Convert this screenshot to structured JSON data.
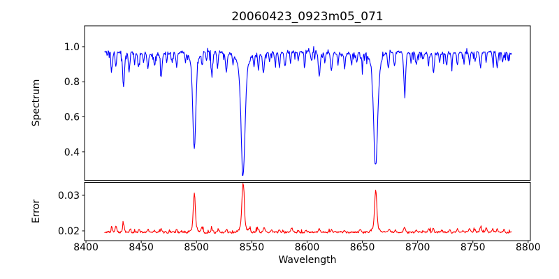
{
  "title": "20060423_0923m05_071",
  "axes": {
    "xlabel": "Wavelength",
    "spectrum_ylabel": "Spectrum",
    "error_ylabel": "Error",
    "xticks": [
      {
        "value": 8400,
        "label": "8400"
      },
      {
        "value": 8450,
        "label": "8450"
      },
      {
        "value": 8500,
        "label": "8500"
      },
      {
        "value": 8550,
        "label": "8550"
      },
      {
        "value": 8600,
        "label": "8600"
      },
      {
        "value": 8650,
        "label": "8650"
      },
      {
        "value": 8700,
        "label": "8700"
      },
      {
        "value": 8750,
        "label": "8750"
      },
      {
        "value": 8800,
        "label": "8800"
      }
    ]
  },
  "colors": {
    "spectrum_line": "#0000ff",
    "error_line": "#ff0000",
    "axis": "#000000",
    "background": "#ffffff"
  },
  "chart_data": [
    {
      "panel": "spectrum",
      "type": "line",
      "series_name": "Spectrum",
      "color": "#0000ff",
      "xlim": [
        8398.7,
        8802.0
      ],
      "ylim": [
        0.238,
        1.119
      ],
      "yticks": [
        {
          "value": 0.4,
          "label": "0.4"
        },
        {
          "value": 0.6,
          "label": "0.6"
        },
        {
          "value": 0.8,
          "label": "0.8"
        },
        {
          "value": 1.0,
          "label": "1.0"
        }
      ],
      "x_data_range": [
        8417,
        8785
      ],
      "sample_step": 0.5,
      "seed": 42,
      "continuum": 0.965,
      "ripple": {
        "amp": 0.006,
        "period": 85
      },
      "noise_amp": 0.011,
      "down_spike": {
        "prob": 0.1,
        "max": 0.05
      },
      "up_spike": {
        "prob": 0.05,
        "max": 0.03
      },
      "absorption_lines_format": "[center_wavelength, depth, sigma]",
      "absorption_lines": [
        [
          8498.0,
          0.46,
          1.3
        ],
        [
          8498.0,
          0.09,
          3.2
        ],
        [
          8542.1,
          0.58,
          1.7
        ],
        [
          8542.1,
          0.11,
          4.2
        ],
        [
          8662.1,
          0.53,
          1.7
        ],
        [
          8662.1,
          0.11,
          4.2
        ],
        [
          8423.5,
          0.1,
          0.7
        ],
        [
          8427.0,
          0.09,
          0.6
        ],
        [
          8434.0,
          0.195,
          0.85
        ],
        [
          8439.0,
          0.11,
          0.7
        ],
        [
          8444.0,
          0.06,
          0.5
        ],
        [
          8447.5,
          0.08,
          0.6
        ],
        [
          8452.0,
          0.06,
          0.5
        ],
        [
          8456.0,
          0.09,
          0.7
        ],
        [
          8462.0,
          0.07,
          0.6
        ],
        [
          8468.0,
          0.13,
          0.8
        ],
        [
          8473.0,
          0.05,
          0.5
        ],
        [
          8478.0,
          0.06,
          0.5
        ],
        [
          8482.0,
          0.08,
          0.6
        ],
        [
          8490.0,
          0.06,
          0.5
        ],
        [
          8505.0,
          0.07,
          0.6
        ],
        [
          8509.0,
          0.05,
          0.5
        ],
        [
          8514.0,
          0.13,
          0.8
        ],
        [
          8519.0,
          0.09,
          0.6
        ],
        [
          8527.0,
          0.11,
          0.8
        ],
        [
          8533.0,
          0.06,
          0.5
        ],
        [
          8552.0,
          0.07,
          0.5
        ],
        [
          8556.0,
          0.09,
          0.6
        ],
        [
          8560.5,
          0.11,
          0.8
        ],
        [
          8566.0,
          0.05,
          0.5
        ],
        [
          8571.0,
          0.06,
          0.5
        ],
        [
          8575.0,
          0.08,
          0.6
        ],
        [
          8580.0,
          0.1,
          0.7
        ],
        [
          8585.0,
          0.06,
          0.5
        ],
        [
          8592.0,
          0.05,
          0.5
        ],
        [
          8598.0,
          0.07,
          0.6
        ],
        [
          8604.0,
          0.06,
          0.5
        ],
        [
          8611.0,
          0.13,
          0.8
        ],
        [
          8616.0,
          0.06,
          0.5
        ],
        [
          8622.0,
          0.1,
          0.7
        ],
        [
          8628.0,
          0.06,
          0.5
        ],
        [
          8634.0,
          0.08,
          0.6
        ],
        [
          8640.0,
          0.05,
          0.5
        ],
        [
          8645.0,
          0.06,
          0.5
        ],
        [
          8650.0,
          0.07,
          0.6
        ],
        [
          8673.5,
          0.09,
          0.7
        ],
        [
          8679.0,
          0.08,
          0.6
        ],
        [
          8688.3,
          0.215,
          0.9
        ],
        [
          8694.0,
          0.06,
          0.5
        ],
        [
          8699.0,
          0.07,
          0.6
        ],
        [
          8705.0,
          0.05,
          0.5
        ],
        [
          8710.0,
          0.07,
          0.6
        ],
        [
          8714.5,
          0.1,
          0.7
        ],
        [
          8720.0,
          0.05,
          0.5
        ],
        [
          8726.0,
          0.06,
          0.5
        ],
        [
          8731.0,
          0.06,
          0.5
        ],
        [
          8736.0,
          0.08,
          0.6
        ],
        [
          8742.0,
          0.06,
          0.5
        ],
        [
          8747.0,
          0.07,
          0.6
        ],
        [
          8752.0,
          0.05,
          0.5
        ],
        [
          8757.0,
          0.09,
          0.7
        ],
        [
          8762.0,
          0.06,
          0.5
        ],
        [
          8768.0,
          0.06,
          0.5
        ],
        [
          8772.0,
          0.09,
          0.7
        ],
        [
          8777.0,
          0.06,
          0.5
        ],
        [
          8782.0,
          0.05,
          0.5
        ]
      ]
    },
    {
      "panel": "error",
      "type": "line",
      "series_name": "Error",
      "color": "#ff0000",
      "xlim": [
        8398.7,
        8802.0
      ],
      "ylim": [
        0.01725,
        0.03363
      ],
      "yticks": [
        {
          "value": 0.02,
          "label": "0.02"
        },
        {
          "value": 0.03,
          "label": "0.03"
        }
      ],
      "x_data_range": [
        8417,
        8785
      ],
      "sample_step": 0.5,
      "seed": 1234,
      "baseline": 0.0196,
      "noise_amp": 0.00035,
      "bump": {
        "prob": 0.06,
        "max": 0.0012
      },
      "peaks_format": "[center_wavelength, height, sigma]",
      "peaks": [
        [
          8498.0,
          0.0098,
          0.9
        ],
        [
          8498.0,
          0.0012,
          2.5
        ],
        [
          8542.1,
          0.0123,
          1.0
        ],
        [
          8542.1,
          0.0018,
          3.0
        ],
        [
          8662.1,
          0.0104,
          0.95
        ],
        [
          8662.1,
          0.0016,
          3.0
        ],
        [
          8423.5,
          0.0012,
          0.7
        ],
        [
          8427.0,
          0.0018,
          0.7
        ],
        [
          8434.0,
          0.0022,
          0.8
        ],
        [
          8440.0,
          0.001,
          0.6
        ],
        [
          8448.0,
          0.0008,
          0.6
        ],
        [
          8456.0,
          0.0008,
          0.6
        ],
        [
          8462.0,
          0.0006,
          0.5
        ],
        [
          8468.0,
          0.001,
          0.7
        ],
        [
          8482.0,
          0.0007,
          0.6
        ],
        [
          8505.0,
          0.0014,
          0.7
        ],
        [
          8514.0,
          0.001,
          0.7
        ],
        [
          8520.0,
          0.0008,
          0.6
        ],
        [
          8527.0,
          0.0008,
          0.6
        ],
        [
          8548.0,
          0.0008,
          0.6
        ],
        [
          8556.0,
          0.001,
          0.7
        ],
        [
          8561.0,
          0.0013,
          0.7
        ],
        [
          8568.0,
          0.0006,
          0.5
        ],
        [
          8575.0,
          0.0007,
          0.6
        ],
        [
          8586.0,
          0.0012,
          0.8
        ],
        [
          8592.0,
          0.0006,
          0.5
        ],
        [
          8599.0,
          0.0007,
          0.6
        ],
        [
          8611.0,
          0.0009,
          0.7
        ],
        [
          8622.0,
          0.0007,
          0.6
        ],
        [
          8634.0,
          0.0006,
          0.5
        ],
        [
          8648.0,
          0.001,
          0.7
        ],
        [
          8674.0,
          0.0009,
          0.6
        ],
        [
          8680.0,
          0.0007,
          0.5
        ],
        [
          8688.0,
          0.0014,
          0.8
        ],
        [
          8699.0,
          0.0007,
          0.6
        ],
        [
          8705.0,
          0.0006,
          0.5
        ],
        [
          8710.0,
          0.0009,
          0.6
        ],
        [
          8714.0,
          0.0013,
          0.7
        ],
        [
          8722.0,
          0.0007,
          0.5
        ],
        [
          8729.0,
          0.0009,
          0.6
        ],
        [
          8736.0,
          0.0011,
          0.6
        ],
        [
          8741.0,
          0.0008,
          0.5
        ],
        [
          8747.0,
          0.0012,
          0.7
        ],
        [
          8752.0,
          0.0008,
          0.5
        ],
        [
          8757.0,
          0.0016,
          0.8
        ],
        [
          8762.0,
          0.0013,
          0.7
        ],
        [
          8768.0,
          0.0009,
          0.6
        ],
        [
          8772.0,
          0.0011,
          0.6
        ],
        [
          8778.0,
          0.0008,
          0.5
        ]
      ]
    }
  ]
}
